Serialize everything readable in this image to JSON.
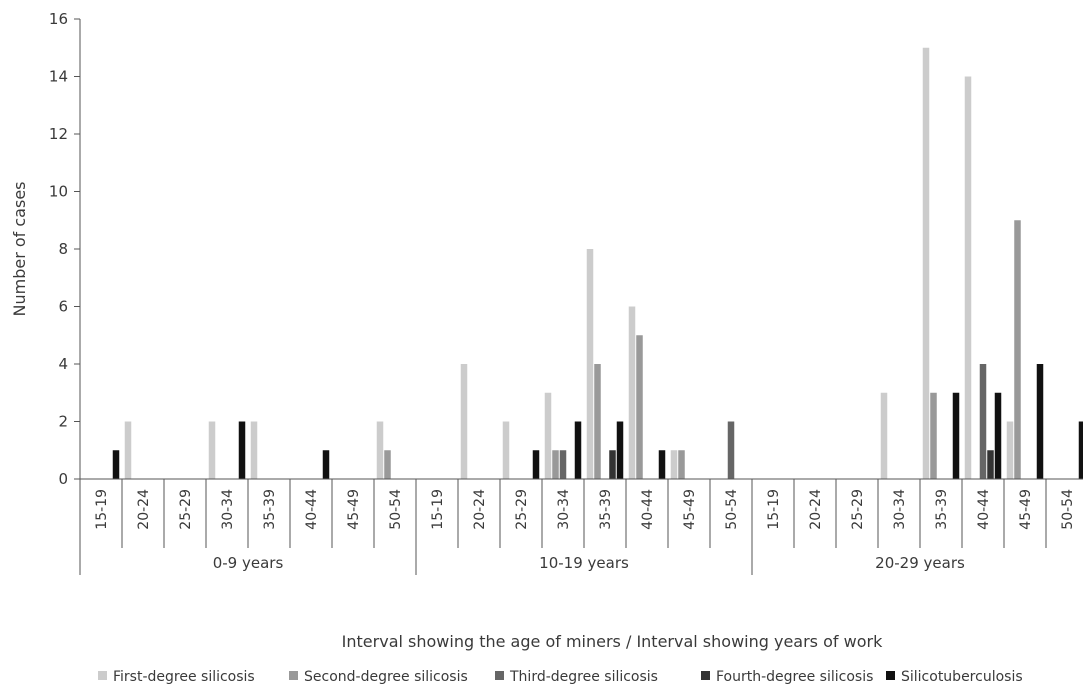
{
  "chart_data": {
    "type": "bar",
    "ylabel": "Number of cases",
    "xlabel": "Interval showing the age of miners / Interval showing years of work",
    "ylim": [
      0,
      16
    ],
    "yticks": [
      0,
      2,
      4,
      6,
      8,
      10,
      12,
      14,
      16
    ],
    "groups": [
      {
        "label": "0-9 years",
        "categories": [
          "15-19",
          "20-24",
          "25-29",
          "30-34",
          "35-39",
          "40-44",
          "45-49",
          "50-54"
        ]
      },
      {
        "label": "10-19 years",
        "categories": [
          "15-19",
          "20-24",
          "25-29",
          "30-34",
          "35-39",
          "40-44",
          "45-49",
          "50-54"
        ]
      },
      {
        "label": "20-29 years",
        "categories": [
          "15-19",
          "20-24",
          "25-29",
          "30-34",
          "35-39",
          "40-44",
          "45-49",
          "50-54"
        ]
      }
    ],
    "series": [
      {
        "name": "First-degree silicosis",
        "color": "#cccccc",
        "values": [
          0,
          2,
          0,
          2,
          2,
          0,
          0,
          2,
          0,
          4,
          2,
          3,
          8,
          6,
          1,
          0,
          0,
          0,
          0,
          3,
          15,
          14,
          2,
          0
        ]
      },
      {
        "name": "Second-degree silicosis",
        "color": "#999999",
        "values": [
          0,
          0,
          0,
          0,
          0,
          0,
          0,
          1,
          0,
          0,
          0,
          1,
          4,
          5,
          1,
          0,
          0,
          0,
          0,
          0,
          3,
          0,
          9,
          0
        ]
      },
      {
        "name": "Third-degree silicosis",
        "color": "#666666",
        "values": [
          0,
          0,
          0,
          0,
          0,
          0,
          0,
          0,
          0,
          0,
          0,
          1,
          0,
          0,
          0,
          2,
          0,
          0,
          0,
          0,
          0,
          4,
          0,
          0
        ]
      },
      {
        "name": "Fourth-degree silicosis",
        "color": "#333333",
        "values": [
          0,
          0,
          0,
          0,
          0,
          0,
          0,
          0,
          0,
          0,
          0,
          0,
          1,
          0,
          0,
          0,
          0,
          0,
          0,
          0,
          0,
          1,
          0,
          0
        ]
      },
      {
        "name": "Silicotuberculosis",
        "color": "#111111",
        "values": [
          1,
          0,
          0,
          2,
          0,
          1,
          0,
          0,
          0,
          0,
          1,
          2,
          2,
          1,
          0,
          0,
          0,
          0,
          0,
          0,
          3,
          3,
          4,
          2
        ]
      }
    ],
    "legend_position": "bottom",
    "grid": false
  }
}
